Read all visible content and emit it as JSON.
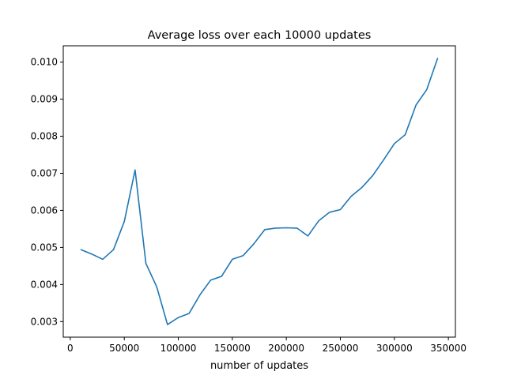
{
  "chart_data": {
    "type": "line",
    "title": "Average loss over each 10000 updates",
    "xlabel": "number of updates",
    "ylabel": "",
    "xlim": [
      -6500,
      356500
    ],
    "ylim": [
      0.00258,
      0.01044
    ],
    "xticks": [
      0,
      50000,
      100000,
      150000,
      200000,
      250000,
      300000,
      350000
    ],
    "xtick_labels": [
      "0",
      "50000",
      "100000",
      "150000",
      "200000",
      "250000",
      "300000",
      "350000"
    ],
    "yticks": [
      0.003,
      0.004,
      0.005,
      0.006,
      0.007,
      0.008,
      0.009,
      0.01
    ],
    "ytick_labels": [
      "0.003",
      "0.004",
      "0.005",
      "0.006",
      "0.007",
      "0.008",
      "0.009",
      "0.010"
    ],
    "grid": false,
    "series": [
      {
        "color": "#1f77b4",
        "x": [
          10000,
          20000,
          30000,
          40000,
          50000,
          60000,
          70000,
          80000,
          90000,
          100000,
          110000,
          120000,
          130000,
          140000,
          150000,
          160000,
          170000,
          180000,
          190000,
          200000,
          210000,
          220000,
          230000,
          240000,
          250000,
          260000,
          270000,
          280000,
          290000,
          300000,
          310000,
          320000,
          330000,
          340000
        ],
        "y": [
          0.00494,
          0.00482,
          0.00468,
          0.00494,
          0.0057,
          0.00709,
          0.00457,
          0.00394,
          0.00292,
          0.00311,
          0.00322,
          0.00372,
          0.00412,
          0.00422,
          0.00468,
          0.00478,
          0.0051,
          0.00548,
          0.00552,
          0.00553,
          0.00552,
          0.00531,
          0.00572,
          0.00595,
          0.00602,
          0.00638,
          0.00662,
          0.00694,
          0.00736,
          0.0078,
          0.00804,
          0.00884,
          0.00926,
          0.0101
        ]
      }
    ]
  }
}
